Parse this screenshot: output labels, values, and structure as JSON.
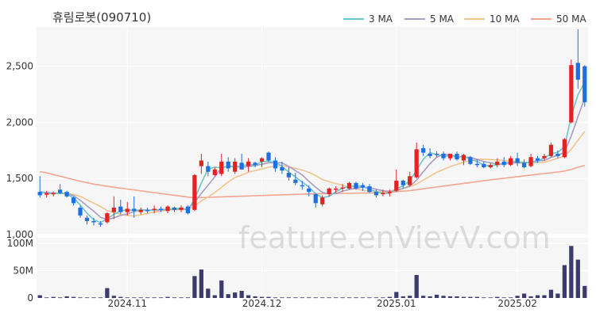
{
  "title": "휴림로봇(090710)",
  "watermark": "feature.enVievV.com",
  "colors": {
    "up": "#e22323",
    "down": "#1f6fe0",
    "ma3": "#6cc7c9",
    "ma5": "#a99cc6",
    "ma10": "#f2c48f",
    "ma50": "#f3a691",
    "volume": "#3d3b6d",
    "plot_bg": "#f6f6f6"
  },
  "chart_data": {
    "type": "candlestick",
    "legend": [
      "3 MA",
      "5 MA",
      "10 MA",
      "50 MA"
    ],
    "legend_position": "top-right",
    "price_axis": {
      "ticks": [
        1000,
        1500,
        2000,
        2500
      ],
      "tick_labels": [
        "1,000",
        "1,500",
        "2,000",
        "2,500"
      ],
      "ylim": [
        1000,
        2850
      ]
    },
    "volume_axis": {
      "ticks": [
        0,
        50,
        100
      ],
      "tick_labels": [
        "0",
        "50M",
        "100M"
      ],
      "ylim": [
        0,
        110
      ]
    },
    "x_labels": [
      {
        "index": 13,
        "label": "2024.11"
      },
      {
        "index": 33,
        "label": "2024.12"
      },
      {
        "index": 53,
        "label": "2025.01"
      },
      {
        "index": 71,
        "label": "2025.02"
      }
    ],
    "candles": [
      [
        1380,
        1520,
        1330,
        1350
      ],
      [
        1355,
        1390,
        1330,
        1370
      ],
      [
        1360,
        1385,
        1340,
        1370
      ],
      [
        1400,
        1450,
        1360,
        1370
      ],
      [
        1380,
        1390,
        1330,
        1340
      ],
      [
        1330,
        1340,
        1260,
        1280
      ],
      [
        1240,
        1260,
        1150,
        1170
      ],
      [
        1150,
        1170,
        1090,
        1120
      ],
      [
        1120,
        1150,
        1080,
        1110
      ],
      [
        1100,
        1120,
        1070,
        1090
      ],
      [
        1110,
        1200,
        1100,
        1190
      ],
      [
        1200,
        1340,
        1140,
        1240
      ],
      [
        1250,
        1310,
        1180,
        1200
      ],
      [
        1200,
        1290,
        1170,
        1230
      ],
      [
        1230,
        1340,
        1150,
        1210
      ],
      [
        1200,
        1240,
        1180,
        1220
      ],
      [
        1220,
        1240,
        1190,
        1210
      ],
      [
        1220,
        1260,
        1190,
        1230
      ],
      [
        1230,
        1250,
        1200,
        1220
      ],
      [
        1210,
        1260,
        1190,
        1250
      ],
      [
        1240,
        1250,
        1200,
        1220
      ],
      [
        1220,
        1260,
        1200,
        1240
      ],
      [
        1250,
        1260,
        1180,
        1190
      ],
      [
        1220,
        1540,
        1210,
        1530
      ],
      [
        1610,
        1720,
        1540,
        1660
      ],
      [
        1610,
        1650,
        1520,
        1560
      ],
      [
        1530,
        1600,
        1520,
        1580
      ],
      [
        1540,
        1720,
        1520,
        1650
      ],
      [
        1650,
        1690,
        1560,
        1590
      ],
      [
        1560,
        1680,
        1540,
        1650
      ],
      [
        1640,
        1720,
        1580,
        1580
      ],
      [
        1610,
        1680,
        1560,
        1650
      ],
      [
        1640,
        1650,
        1600,
        1620
      ],
      [
        1650,
        1690,
        1600,
        1680
      ],
      [
        1730,
        1740,
        1650,
        1660
      ],
      [
        1660,
        1690,
        1560,
        1590
      ],
      [
        1600,
        1650,
        1540,
        1570
      ],
      [
        1550,
        1600,
        1480,
        1510
      ],
      [
        1490,
        1550,
        1440,
        1460
      ],
      [
        1440,
        1480,
        1400,
        1430
      ],
      [
        1410,
        1440,
        1340,
        1380
      ],
      [
        1360,
        1370,
        1240,
        1280
      ],
      [
        1270,
        1350,
        1250,
        1330
      ],
      [
        1360,
        1420,
        1340,
        1410
      ],
      [
        1400,
        1430,
        1370,
        1410
      ],
      [
        1410,
        1450,
        1380,
        1420
      ],
      [
        1410,
        1470,
        1400,
        1460
      ],
      [
        1460,
        1470,
        1400,
        1410
      ],
      [
        1440,
        1460,
        1390,
        1420
      ],
      [
        1430,
        1450,
        1370,
        1380
      ],
      [
        1380,
        1400,
        1330,
        1350
      ],
      [
        1360,
        1400,
        1340,
        1370
      ],
      [
        1370,
        1400,
        1340,
        1380
      ],
      [
        1390,
        1580,
        1380,
        1480
      ],
      [
        1480,
        1490,
        1410,
        1440
      ],
      [
        1440,
        1560,
        1430,
        1520
      ],
      [
        1510,
        1820,
        1500,
        1760
      ],
      [
        1770,
        1800,
        1700,
        1730
      ],
      [
        1720,
        1770,
        1680,
        1700
      ],
      [
        1720,
        1740,
        1690,
        1710
      ],
      [
        1720,
        1740,
        1660,
        1680
      ],
      [
        1680,
        1720,
        1660,
        1720
      ],
      [
        1720,
        1740,
        1660,
        1670
      ],
      [
        1660,
        1720,
        1620,
        1710
      ],
      [
        1690,
        1700,
        1620,
        1630
      ],
      [
        1630,
        1670,
        1600,
        1620
      ],
      [
        1630,
        1650,
        1590,
        1600
      ],
      [
        1600,
        1640,
        1590,
        1620
      ],
      [
        1620,
        1680,
        1600,
        1650
      ],
      [
        1650,
        1690,
        1600,
        1620
      ],
      [
        1620,
        1700,
        1610,
        1680
      ],
      [
        1680,
        1730,
        1610,
        1640
      ],
      [
        1640,
        1670,
        1590,
        1600
      ],
      [
        1610,
        1720,
        1600,
        1690
      ],
      [
        1680,
        1700,
        1640,
        1660
      ],
      [
        1680,
        1720,
        1660,
        1700
      ],
      [
        1700,
        1820,
        1690,
        1800
      ],
      [
        1720,
        1750,
        1680,
        1700
      ],
      [
        1690,
        1860,
        1680,
        1850
      ],
      [
        2000,
        2560,
        1990,
        2510
      ],
      [
        2530,
        2830,
        2300,
        2380
      ],
      [
        2500,
        2510,
        2140,
        2180
      ]
    ],
    "volumes": [
      5,
      1,
      2,
      1,
      3,
      2,
      1,
      1,
      1,
      1,
      18,
      4,
      2,
      1,
      1,
      1,
      1,
      1,
      1,
      2,
      1,
      1,
      1,
      40,
      52,
      17,
      5,
      32,
      7,
      10,
      13,
      5,
      3,
      2,
      2,
      1,
      1,
      1,
      1,
      1,
      1,
      1,
      1,
      1,
      1,
      1,
      1,
      1,
      1,
      1,
      1,
      1,
      2,
      11,
      3,
      4,
      42,
      4,
      3,
      6,
      4,
      3,
      3,
      2,
      2,
      2,
      1,
      1,
      2,
      1,
      1,
      4,
      8,
      3,
      5,
      5,
      15,
      8,
      60,
      95,
      70,
      22
    ],
    "ma3": [
      1385,
      1370,
      1363,
      1370,
      1360,
      1330,
      1263,
      1190,
      1133,
      1107,
      1140,
      1180,
      1210,
      1223,
      1213,
      1220,
      1213,
      1220,
      1220,
      1227,
      1227,
      1237,
      1217,
      1320,
      1460,
      1583,
      1600,
      1597,
      1607,
      1607,
      1607,
      1627,
      1617,
      1650,
      1653,
      1643,
      1607,
      1557,
      1513,
      1467,
      1423,
      1363,
      1330,
      1340,
      1383,
      1413,
      1430,
      1430,
      1430,
      1403,
      1383,
      1367,
      1367,
      1410,
      1433,
      1480,
      1573,
      1670,
      1730,
      1713,
      1697,
      1703,
      1690,
      1700,
      1670,
      1653,
      1617,
      1613,
      1623,
      1630,
      1650,
      1647,
      1640,
      1643,
      1650,
      1683,
      1720,
      1733,
      1783,
      2053,
      2247,
      2357
    ],
    "ma5": [
      1380,
      1375,
      1370,
      1368,
      1366,
      1348,
      1306,
      1256,
      1208,
      1154,
      1134,
      1150,
      1170,
      1184,
      1204,
      1220,
      1218,
      1218,
      1218,
      1226,
      1226,
      1228,
      1226,
      1288,
      1368,
      1440,
      1515,
      1596,
      1608,
      1606,
      1600,
      1606,
      1614,
      1626,
      1640,
      1640,
      1638,
      1606,
      1570,
      1532,
      1474,
      1422,
      1376,
      1362,
      1366,
      1388,
      1402,
      1412,
      1424,
      1418,
      1404,
      1392,
      1382,
      1392,
      1412,
      1432,
      1484,
      1560,
      1632,
      1690,
      1716,
      1708,
      1694,
      1692,
      1688,
      1670,
      1650,
      1640,
      1628,
      1628,
      1638,
      1640,
      1638,
      1646,
      1658,
      1660,
      1688,
      1706,
      1734,
      1878,
      2050,
      2218
    ],
    "ma10": [
      1370,
      1370,
      1370,
      1370,
      1368,
      1358,
      1340,
      1310,
      1280,
      1250,
      1215,
      1195,
      1180,
      1170,
      1165,
      1175,
      1190,
      1200,
      1210,
      1220,
      1222,
      1224,
      1222,
      1255,
      1300,
      1335,
      1375,
      1420,
      1470,
      1510,
      1530,
      1555,
      1570,
      1585,
      1600,
      1610,
      1615,
      1605,
      1590,
      1575,
      1555,
      1525,
      1490,
      1470,
      1455,
      1440,
      1420,
      1405,
      1395,
      1390,
      1385,
      1385,
      1390,
      1400,
      1410,
      1425,
      1450,
      1485,
      1520,
      1555,
      1580,
      1605,
      1625,
      1645,
      1660,
      1670,
      1672,
      1668,
      1665,
      1660,
      1655,
      1650,
      1645,
      1642,
      1642,
      1645,
      1660,
      1680,
      1700,
      1760,
      1840,
      1920
    ],
    "ma50": [
      1560,
      1550,
      1535,
      1520,
      1505,
      1490,
      1475,
      1462,
      1450,
      1440,
      1430,
      1422,
      1414,
      1406,
      1398,
      1390,
      1382,
      1374,
      1366,
      1358,
      1350,
      1342,
      1334,
      1330,
      1330,
      1332,
      1334,
      1336,
      1338,
      1340,
      1342,
      1344,
      1346,
      1348,
      1350,
      1352,
      1354,
      1356,
      1358,
      1360,
      1362,
      1363,
      1364,
      1365,
      1366,
      1367,
      1368,
      1369,
      1370,
      1371,
      1372,
      1374,
      1378,
      1382,
      1387,
      1392,
      1400,
      1408,
      1416,
      1424,
      1432,
      1440,
      1448,
      1456,
      1464,
      1472,
      1480,
      1488,
      1495,
      1502,
      1509,
      1516,
      1523,
      1530,
      1537,
      1544,
      1551,
      1558,
      1566,
      1580,
      1600,
      1615
    ]
  }
}
